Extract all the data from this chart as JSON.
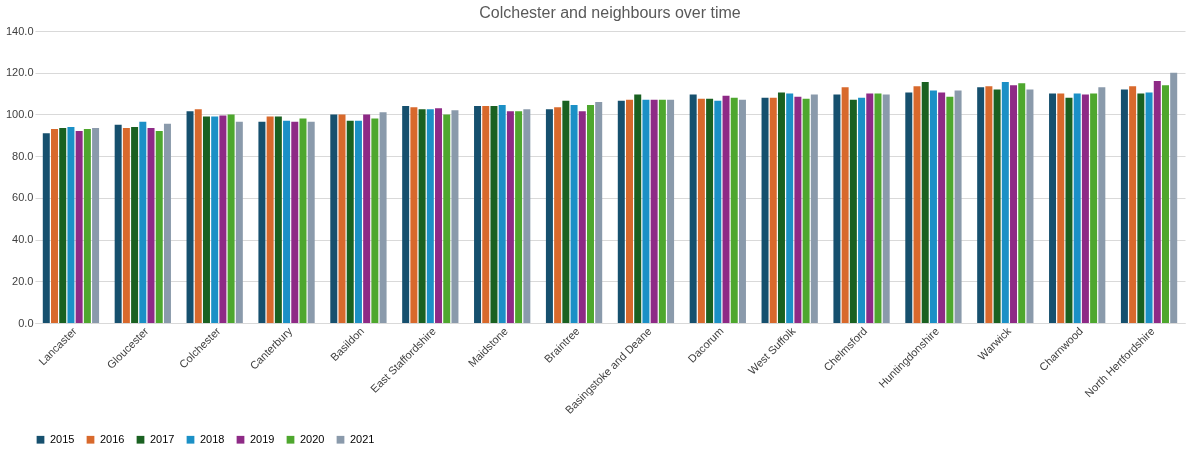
{
  "chart_data": {
    "type": "bar",
    "title": "Colchester and neighbours over time",
    "categories": [
      "Lancaster",
      "Gloucester",
      "Colchester",
      "Canterbury",
      "Basildon",
      "East Staffordshire",
      "Maidstone",
      "Braintree",
      "Basingstoke and Deane",
      "Dacorum",
      "West Suffolk",
      "Chelmsford",
      "Huntingdonshire",
      "Warwick",
      "Charnwood",
      "North Hertfordshire"
    ],
    "series": [
      {
        "name": "2015",
        "color": "#16506e",
        "values": [
          91,
          95,
          101.5,
          96.5,
          100,
          104,
          104,
          102.5,
          106.5,
          109.5,
          108,
          109.5,
          110.5,
          113,
          110,
          112
        ]
      },
      {
        "name": "2016",
        "color": "#d8692c",
        "values": [
          93,
          93.5,
          102.5,
          99,
          100,
          103.5,
          104,
          103.5,
          107,
          107.5,
          108,
          113,
          113.5,
          113.5,
          110,
          113.5
        ]
      },
      {
        "name": "2017",
        "color": "#1a6121",
        "values": [
          93.5,
          94,
          99,
          99,
          97,
          102.5,
          104,
          106.5,
          109.5,
          107.5,
          110.5,
          107,
          115.5,
          112,
          108,
          110
        ]
      },
      {
        "name": "2018",
        "color": "#1b90c6",
        "values": [
          94,
          96.5,
          99,
          97,
          97,
          102.5,
          104.5,
          104.5,
          107,
          106.5,
          110,
          108,
          111.5,
          115.5,
          110,
          110.5
        ]
      },
      {
        "name": "2019",
        "color": "#8e2a86",
        "values": [
          92,
          93.5,
          99.5,
          96.5,
          100,
          103,
          101.5,
          101.5,
          107,
          109,
          108.5,
          110,
          110.5,
          114,
          109.5,
          116
        ]
      },
      {
        "name": "2020",
        "color": "#4ea72e",
        "values": [
          93,
          92,
          100,
          98,
          98,
          100,
          101.5,
          104.5,
          107,
          108,
          107.5,
          110,
          108.5,
          115,
          110,
          114
        ]
      },
      {
        "name": "2021",
        "color": "#8a9aab",
        "values": [
          93.5,
          95.5,
          96.5,
          96.5,
          101,
          102,
          102.5,
          106,
          107,
          107,
          109.5,
          109.5,
          111.5,
          112,
          113,
          120
        ]
      }
    ],
    "ylim": [
      0,
      140
    ],
    "yticks": [
      {
        "value": 0,
        "label": "0.0"
      },
      {
        "value": 20,
        "label": "20.0"
      },
      {
        "value": 40,
        "label": "40.0"
      },
      {
        "value": 60,
        "label": "60.0"
      },
      {
        "value": 80,
        "label": "80.0"
      },
      {
        "value": 100,
        "label": "100.0"
      },
      {
        "value": 120,
        "label": "120.0"
      },
      {
        "value": 140,
        "label": "140.0"
      }
    ],
    "grid": "y",
    "legend": "bottom"
  }
}
